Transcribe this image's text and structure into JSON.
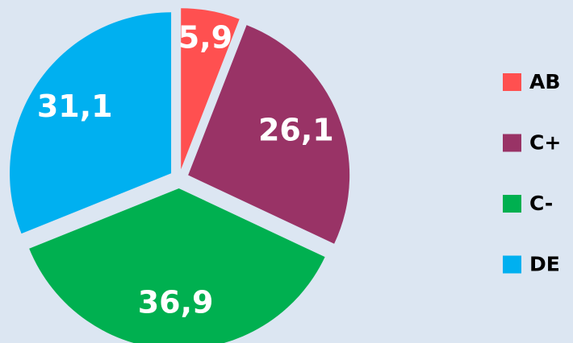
{
  "chart_data": {
    "type": "pie",
    "categories": [
      "AB",
      "C+",
      "C-",
      "DE"
    ],
    "values": [
      5.9,
      26.1,
      36.9,
      31.1
    ],
    "value_labels": [
      "5,9",
      "26,1",
      "36,9",
      "31,1"
    ],
    "colors": [
      "#ff5050",
      "#993366",
      "#00b050",
      "#00b0f0"
    ],
    "legend": "right"
  }
}
